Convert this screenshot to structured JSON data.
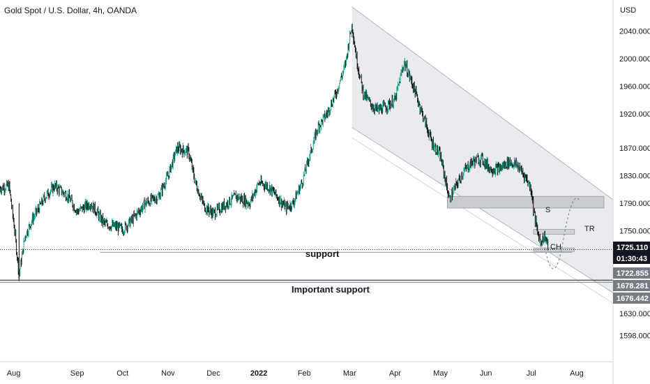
{
  "header": {
    "title": "Gold Spot / U.S. Dollar, 4h, OANDA",
    "currency": "USD"
  },
  "price_tags": {
    "current": "1725.110",
    "countdown": "01:30:43",
    "level_1": "1722.855",
    "level_2": "1678.281",
    "level_3": "1676.442"
  },
  "annotations": {
    "support": "support",
    "important_support": "Important support",
    "s": "S",
    "tr": "TR",
    "ch": "CH"
  },
  "colors": {
    "up_candle": "#089981",
    "down_candle": "#000000",
    "channel_fill": "#e6e8ec",
    "tag_dark": "#131722",
    "tag_grey": "#787b86"
  },
  "chart_data": {
    "type": "line",
    "title": "Gold Spot / U.S. Dollar, 4h, OANDA",
    "y_axis": {
      "unit": "USD",
      "ticks": [
        2040,
        2000,
        1960,
        1920,
        1870,
        1830,
        1790,
        1750,
        1630,
        1598
      ],
      "tick_labels": [
        "2040.000",
        "2000.000",
        "1960.000",
        "1920.000",
        "1870.000",
        "1830.000",
        "1790.000",
        "1750.000",
        "1630.000",
        "1598.000"
      ],
      "range": [
        1560,
        2085
      ]
    },
    "x_axis": {
      "ticks": [
        "Aug",
        "Sep",
        "Oct",
        "Nov",
        "Dec",
        "2022",
        "Feb",
        "Mar",
        "Apr",
        "May",
        "Jun",
        "Jul",
        "Aug"
      ],
      "tick_t": [
        0.6,
        2.0,
        3.0,
        4.0,
        5.0,
        6.0,
        7.0,
        8.0,
        9.0,
        10.0,
        11.0,
        12.0,
        13.0
      ],
      "range_months": [
        0.3,
        13.8
      ]
    },
    "series": [
      {
        "t": [
          0.3,
          0.5,
          0.62,
          0.72,
          0.85,
          1.0,
          1.3,
          1.5,
          1.8,
          2.0,
          2.3,
          2.6,
          2.9,
          3.0,
          3.2,
          3.5,
          3.8,
          4.0,
          4.2,
          4.45,
          4.6,
          4.8,
          5.0,
          5.2,
          5.5,
          5.8,
          6.0,
          6.2,
          6.4,
          6.6,
          6.75,
          6.95,
          7.1,
          7.3,
          7.5,
          7.7,
          7.9,
          8.05,
          8.15,
          8.3,
          8.45,
          8.6,
          8.8,
          9.0,
          9.2,
          9.4,
          9.6,
          9.8,
          10.0,
          10.2,
          10.3,
          10.5,
          10.7,
          10.9,
          11.1,
          11.3,
          11.5,
          11.7,
          11.9,
          12.0,
          12.05,
          12.1,
          12.15,
          12.2,
          12.3,
          12.38
        ],
        "price": [
          1812,
          1815,
          1752,
          1685,
          1742,
          1765,
          1800,
          1815,
          1800,
          1778,
          1790,
          1760,
          1755,
          1752,
          1765,
          1790,
          1800,
          1830,
          1870,
          1865,
          1820,
          1785,
          1775,
          1785,
          1800,
          1790,
          1820,
          1815,
          1800,
          1783,
          1790,
          1820,
          1855,
          1900,
          1920,
          1950,
          1990,
          2050,
          2000,
          1950,
          1935,
          1925,
          1930,
          1940,
          1995,
          1960,
          1920,
          1880,
          1858,
          1795,
          1810,
          1835,
          1850,
          1855,
          1840,
          1840,
          1850,
          1845,
          1825,
          1810,
          1780,
          1760,
          1745,
          1735,
          1742,
          1725
        ]
      }
    ],
    "levels": {
      "support": 1722.855,
      "important_support": 1678.281
    }
  }
}
